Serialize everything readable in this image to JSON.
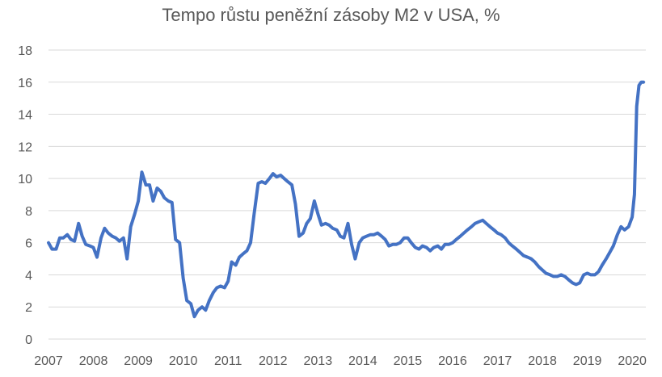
{
  "chart_data": {
    "type": "line",
    "title": "Tempo růstu peněžní zásoby M2 v USA, %",
    "xlabel": "",
    "ylabel": "",
    "xlim": [
      2007,
      2020.3
    ],
    "ylim": [
      0,
      18
    ],
    "yticks": [
      0,
      2,
      4,
      6,
      8,
      10,
      12,
      14,
      16,
      18
    ],
    "xticks": [
      2007,
      2008,
      2009,
      2010,
      2011,
      2012,
      2013,
      2014,
      2015,
      2016,
      2017,
      2018,
      2019,
      2020
    ],
    "grid": "horizontal",
    "legend": "none",
    "colors": {
      "line": "#4472c4",
      "grid": "#d9d9d9",
      "text": "#595959"
    },
    "series": [
      {
        "x": [
          2007.0,
          2007.08,
          2007.17,
          2007.25,
          2007.33,
          2007.42,
          2007.5,
          2007.58,
          2007.67,
          2007.75,
          2007.83,
          2007.92,
          2008.0,
          2008.08,
          2008.17,
          2008.25,
          2008.33,
          2008.42,
          2008.5,
          2008.58,
          2008.67,
          2008.75,
          2008.83,
          2008.92,
          2009.0,
          2009.08,
          2009.17,
          2009.25,
          2009.33,
          2009.42,
          2009.5,
          2009.58,
          2009.67,
          2009.75,
          2009.83,
          2009.92,
          2010.0,
          2010.08,
          2010.17,
          2010.25,
          2010.33,
          2010.42,
          2010.5,
          2010.58,
          2010.67,
          2010.75,
          2010.83,
          2010.92,
          2011.0,
          2011.08,
          2011.17,
          2011.25,
          2011.33,
          2011.42,
          2011.5,
          2011.58,
          2011.67,
          2011.75,
          2011.83,
          2011.92,
          2012.0,
          2012.08,
          2012.17,
          2012.25,
          2012.33,
          2012.42,
          2012.5,
          2012.58,
          2012.67,
          2012.75,
          2012.83,
          2012.92,
          2013.0,
          2013.08,
          2013.17,
          2013.25,
          2013.33,
          2013.42,
          2013.5,
          2013.58,
          2013.67,
          2013.75,
          2013.83,
          2013.92,
          2014.0,
          2014.08,
          2014.17,
          2014.25,
          2014.33,
          2014.42,
          2014.5,
          2014.58,
          2014.67,
          2014.75,
          2014.83,
          2014.92,
          2015.0,
          2015.08,
          2015.17,
          2015.25,
          2015.33,
          2015.42,
          2015.5,
          2015.58,
          2015.67,
          2015.75,
          2015.83,
          2015.92,
          2016.0,
          2016.08,
          2016.17,
          2016.25,
          2016.33,
          2016.42,
          2016.5,
          2016.58,
          2016.67,
          2016.75,
          2016.83,
          2016.92,
          2017.0,
          2017.08,
          2017.17,
          2017.25,
          2017.33,
          2017.42,
          2017.5,
          2017.58,
          2017.67,
          2017.75,
          2017.83,
          2017.92,
          2018.0,
          2018.08,
          2018.17,
          2018.25,
          2018.33,
          2018.42,
          2018.5,
          2018.58,
          2018.67,
          2018.75,
          2018.83,
          2018.92,
          2019.0,
          2019.08,
          2019.17,
          2019.25,
          2019.33,
          2019.42,
          2019.5,
          2019.58,
          2019.67,
          2019.75,
          2019.83,
          2019.92,
          2020.0,
          2020.05,
          2020.1,
          2020.15,
          2020.2,
          2020.25
        ],
        "y": [
          6.0,
          5.6,
          5.6,
          6.3,
          6.3,
          6.5,
          6.2,
          6.1,
          7.2,
          6.4,
          5.9,
          5.8,
          5.7,
          5.1,
          6.3,
          6.9,
          6.6,
          6.4,
          6.3,
          6.1,
          6.3,
          5.0,
          7.0,
          7.8,
          8.6,
          10.4,
          9.6,
          9.6,
          8.6,
          9.4,
          9.2,
          8.8,
          8.6,
          8.5,
          6.2,
          6.0,
          3.8,
          2.4,
          2.2,
          1.4,
          1.8,
          2.0,
          1.8,
          2.4,
          2.9,
          3.2,
          3.3,
          3.2,
          3.6,
          4.8,
          4.6,
          5.1,
          5.3,
          5.5,
          6.0,
          7.8,
          9.7,
          9.8,
          9.7,
          10.0,
          10.3,
          10.1,
          10.2,
          10.0,
          9.8,
          9.6,
          8.4,
          6.4,
          6.6,
          7.2,
          7.5,
          8.6,
          7.8,
          7.1,
          7.2,
          7.1,
          6.9,
          6.8,
          6.4,
          6.3,
          7.2,
          5.9,
          5.0,
          6.0,
          6.3,
          6.4,
          6.5,
          6.5,
          6.6,
          6.4,
          6.2,
          5.8,
          5.9,
          5.9,
          6.0,
          6.3,
          6.3,
          6.0,
          5.7,
          5.6,
          5.8,
          5.7,
          5.5,
          5.7,
          5.8,
          5.6,
          5.9,
          5.9,
          6.0,
          6.2,
          6.4,
          6.6,
          6.8,
          7.0,
          7.2,
          7.3,
          7.4,
          7.2,
          7.0,
          6.8,
          6.6,
          6.5,
          6.3,
          6.0,
          5.8,
          5.6,
          5.4,
          5.2,
          5.1,
          5.0,
          4.8,
          4.5,
          4.3,
          4.1,
          4.0,
          3.9,
          3.9,
          4.0,
          3.9,
          3.7,
          3.5,
          3.4,
          3.5,
          4.0,
          4.1,
          4.0,
          4.0,
          4.2,
          4.6,
          5.0,
          5.4,
          5.8,
          6.5,
          7.0,
          6.8,
          7.0,
          7.6,
          9.0,
          14.5,
          15.8,
          16.0,
          16.0
        ]
      }
    ]
  }
}
